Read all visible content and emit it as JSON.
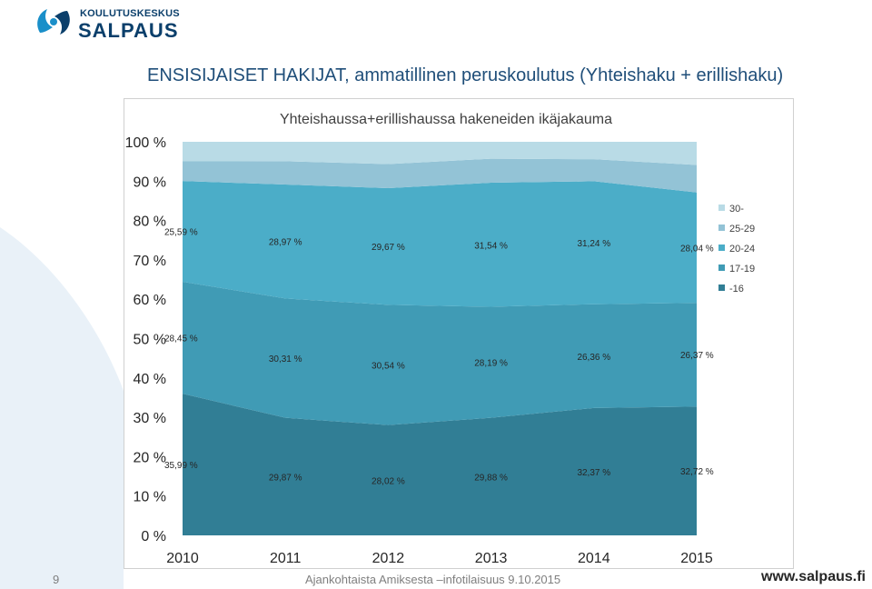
{
  "header": {
    "logo_line1": "KOULUTUSKESKUS",
    "logo_line2": "SALPAUS",
    "slide_title": "ENSISIJAISET HAKIJAT, ammatillinen peruskoulutus (Yhteishaku + erillishaku)"
  },
  "footer": {
    "page_number": "9",
    "text": "Ajankohtaista Amiksesta –infotilaisuus 9.10.2015",
    "url": "www.salpaus.fi"
  },
  "colors": {
    "title": "#1f4e79",
    "logo": "#0b3f6b",
    "series": [
      "#317e95",
      "#409bb5",
      "#4badc8",
      "#93c3d6",
      "#b9dbe6"
    ]
  },
  "chart_data": {
    "type": "area",
    "stacked": true,
    "percent": true,
    "title": "Yhteishaussa+erillishaussa hakeneiden ikäjakauma",
    "x": [
      "2010",
      "2011",
      "2012",
      "2013",
      "2014",
      "2015"
    ],
    "ylim": [
      0,
      100
    ],
    "y_ticks": [
      "0 %",
      "10 %",
      "20 %",
      "30 %",
      "40 %",
      "50 %",
      "60 %",
      "70 %",
      "80 %",
      "90 %",
      "100 %"
    ],
    "legend_position": "right",
    "series": [
      {
        "name": "-16",
        "values": [
          35.99,
          29.87,
          28.02,
          29.88,
          32.37,
          32.72
        ],
        "labels": [
          "35,99 %",
          "29,87 %",
          "28,02 %",
          "29,88 %",
          "32,37 %",
          "32,72 %"
        ]
      },
      {
        "name": "17-19",
        "values": [
          28.45,
          30.31,
          30.54,
          28.19,
          26.36,
          26.37
        ],
        "labels": [
          "28,45 %",
          "30,31 %",
          "30,54 %",
          "28,19 %",
          "26,36 %",
          "26,37 %"
        ]
      },
      {
        "name": "20-24",
        "values": [
          25.59,
          28.97,
          29.67,
          31.54,
          31.24,
          28.04
        ],
        "labels": [
          "25,59 %",
          "28,97 %",
          "29,67 %",
          "31,54 %",
          "31,24 %",
          "28,04 %"
        ]
      },
      {
        "name": "25-29",
        "values": [
          5.0,
          5.9,
          6.1,
          6.1,
          5.6,
          7.0
        ],
        "labels": []
      },
      {
        "name": "30-",
        "values": [
          4.97,
          4.95,
          5.67,
          4.29,
          4.43,
          5.87
        ],
        "labels": []
      }
    ]
  }
}
